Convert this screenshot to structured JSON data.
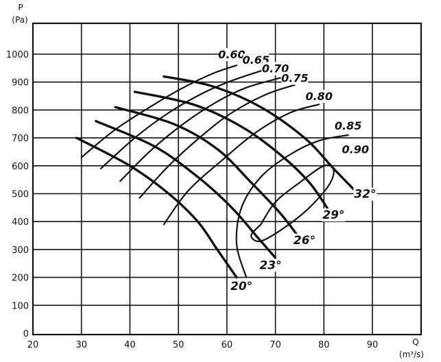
{
  "chart_data": {
    "type": "line",
    "title": "",
    "xlabel": "Q",
    "xunit": "(m³/s)",
    "ylabel": "P",
    "yunit": "(Pa)",
    "xlim": [
      20,
      95
    ],
    "ylim": [
      0,
      1100
    ],
    "x_ticks": [
      "20",
      "30",
      "40",
      "50",
      "60",
      "70",
      "80",
      "90"
    ],
    "y_ticks": [
      "0",
      "100",
      "200",
      "300",
      "400",
      "500",
      "600",
      "700",
      "800",
      "900",
      "1000"
    ],
    "grid": true,
    "blade_angle_curves": [
      {
        "name": "20°",
        "points": [
          [
            29,
            700
          ],
          [
            40,
            600
          ],
          [
            48,
            500
          ],
          [
            54,
            400
          ],
          [
            58,
            300
          ],
          [
            62,
            200
          ]
        ]
      },
      {
        "name": "23°",
        "points": [
          [
            33,
            760
          ],
          [
            45,
            670
          ],
          [
            54,
            560
          ],
          [
            61,
            450
          ],
          [
            66,
            350
          ],
          [
            70,
            270
          ]
        ]
      },
      {
        "name": "26°",
        "points": [
          [
            37,
            810
          ],
          [
            49,
            750
          ],
          [
            58,
            660
          ],
          [
            65,
            540
          ],
          [
            71,
            430
          ],
          [
            75,
            340
          ]
        ]
      },
      {
        "name": "29°",
        "points": [
          [
            41,
            865
          ],
          [
            53,
            820
          ],
          [
            63,
            740
          ],
          [
            71,
            640
          ],
          [
            77,
            540
          ],
          [
            81,
            440
          ]
        ]
      },
      {
        "name": "32°",
        "points": [
          [
            47,
            920
          ],
          [
            57,
            885
          ],
          [
            67,
            810
          ],
          [
            76,
            700
          ],
          [
            82,
            590
          ],
          [
            87,
            500
          ]
        ]
      }
    ],
    "efficiency_curves": [
      {
        "name": "0.60",
        "points": [
          [
            30,
            630
          ],
          [
            37,
            730
          ],
          [
            45,
            820
          ],
          [
            51,
            880
          ],
          [
            57,
            930
          ],
          [
            62,
            960
          ]
        ]
      },
      {
        "name": "0.65",
        "points": [
          [
            34,
            590
          ],
          [
            41,
            700
          ],
          [
            48,
            790
          ],
          [
            55,
            860
          ],
          [
            61,
            905
          ],
          [
            67,
            940
          ]
        ]
      },
      {
        "name": "0.70",
        "points": [
          [
            38,
            545
          ],
          [
            44,
            650
          ],
          [
            51,
            750
          ],
          [
            58,
            830
          ],
          [
            64,
            880
          ],
          [
            71,
            915
          ]
        ]
      },
      {
        "name": "0.75",
        "points": [
          [
            42,
            485
          ],
          [
            48,
            600
          ],
          [
            55,
            710
          ],
          [
            61,
            790
          ],
          [
            68,
            855
          ],
          [
            74,
            890
          ]
        ]
      },
      {
        "name": "0.80",
        "points": [
          [
            47,
            390
          ],
          [
            52,
            510
          ],
          [
            59,
            620
          ],
          [
            66,
            720
          ],
          [
            73,
            790
          ],
          [
            79,
            820
          ]
        ]
      },
      {
        "name": "0.85",
        "points": [
          [
            64,
            200
          ],
          [
            62,
            320
          ],
          [
            63,
            450
          ],
          [
            67,
            560
          ],
          [
            73,
            640
          ],
          [
            79,
            690
          ],
          [
            85,
            710
          ]
        ]
      },
      {
        "name": "0.90",
        "points": [
          [
            67,
            390
          ],
          [
            70,
            470
          ],
          [
            75,
            540
          ],
          [
            80,
            600
          ],
          [
            82,
            585
          ],
          [
            81,
            530
          ],
          [
            77,
            450
          ],
          [
            72,
            380
          ],
          [
            67,
            330
          ],
          [
            65,
            350
          ],
          [
            67,
            390
          ]
        ]
      }
    ],
    "label_positions": [
      {
        "name": "20°",
        "at": [
          63,
          155
        ]
      },
      {
        "name": "23°",
        "at": [
          69,
          230
        ]
      },
      {
        "name": "26°",
        "at": [
          76,
          320
        ]
      },
      {
        "name": "29°",
        "at": [
          82,
          410
        ]
      },
      {
        "name": "32°",
        "at": [
          88.5,
          485
        ]
      },
      {
        "name": "0.60",
        "at": [
          61,
          985
        ]
      },
      {
        "name": "0.65",
        "at": [
          66,
          965
        ]
      },
      {
        "name": "0.70",
        "at": [
          70,
          935
        ]
      },
      {
        "name": "0.75",
        "at": [
          74,
          900
        ]
      },
      {
        "name": "0.80",
        "at": [
          79,
          835
        ]
      },
      {
        "name": "0.85",
        "at": [
          85,
          730
        ]
      },
      {
        "name": "0.90",
        "at": [
          86.5,
          645
        ]
      }
    ]
  }
}
